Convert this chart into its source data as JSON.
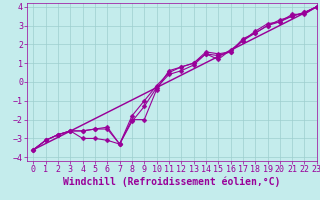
{
  "xlabel": "Windchill (Refroidissement éolien,°C)",
  "xlim": [
    -0.5,
    23
  ],
  "ylim": [
    -4.2,
    4.2
  ],
  "xticks": [
    0,
    1,
    2,
    3,
    4,
    5,
    6,
    7,
    8,
    9,
    10,
    11,
    12,
    13,
    14,
    15,
    16,
    17,
    18,
    19,
    20,
    21,
    22,
    23
  ],
  "yticks": [
    -4,
    -3,
    -2,
    -1,
    0,
    1,
    2,
    3,
    4
  ],
  "bg_color": "#c4ecec",
  "line_color": "#990099",
  "grid_color": "#9ecece",
  "line1_x": [
    0,
    1,
    2,
    3,
    4,
    5,
    6,
    7,
    8,
    9,
    10,
    11,
    12,
    13,
    14,
    15,
    16,
    17,
    18,
    19,
    20,
    21,
    22,
    23
  ],
  "line1_y": [
    -3.6,
    -3.1,
    -2.8,
    -2.6,
    -3.0,
    -3.0,
    -3.1,
    -3.3,
    -2.1,
    -1.3,
    -0.3,
    0.4,
    0.6,
    0.9,
    1.5,
    1.2,
    1.7,
    2.2,
    2.7,
    3.1,
    3.2,
    3.6,
    3.6,
    4.0
  ],
  "line2_x": [
    0,
    1,
    2,
    3,
    4,
    5,
    6,
    7,
    8,
    9,
    10,
    11,
    12,
    13,
    14,
    15,
    16,
    17,
    18,
    19,
    20,
    21,
    22,
    23
  ],
  "line2_y": [
    -3.6,
    -3.1,
    -2.8,
    -2.6,
    -2.6,
    -2.5,
    -2.5,
    -3.3,
    -1.8,
    -1.0,
    -0.2,
    0.5,
    0.8,
    1.0,
    1.5,
    1.4,
    1.6,
    2.3,
    2.6,
    3.0,
    3.3,
    3.5,
    3.7,
    4.0
  ],
  "line3_x": [
    0,
    1,
    2,
    3,
    4,
    5,
    6,
    7,
    8,
    9,
    10,
    11,
    12,
    13,
    14,
    15,
    16,
    17,
    18,
    19,
    20,
    21,
    22,
    23
  ],
  "line3_y": [
    -3.6,
    -3.1,
    -2.8,
    -2.6,
    -2.6,
    -2.5,
    -2.4,
    -3.3,
    -2.0,
    -2.0,
    -0.4,
    0.6,
    0.8,
    1.0,
    1.6,
    1.5,
    1.6,
    2.2,
    2.6,
    3.0,
    3.2,
    3.5,
    3.7,
    4.0
  ],
  "line4_x": [
    0,
    23
  ],
  "line4_y": [
    -3.6,
    4.0
  ],
  "fontsize_xlabel": 7,
  "tick_fontsize": 6,
  "linewidth": 0.8,
  "markersize": 2.5
}
